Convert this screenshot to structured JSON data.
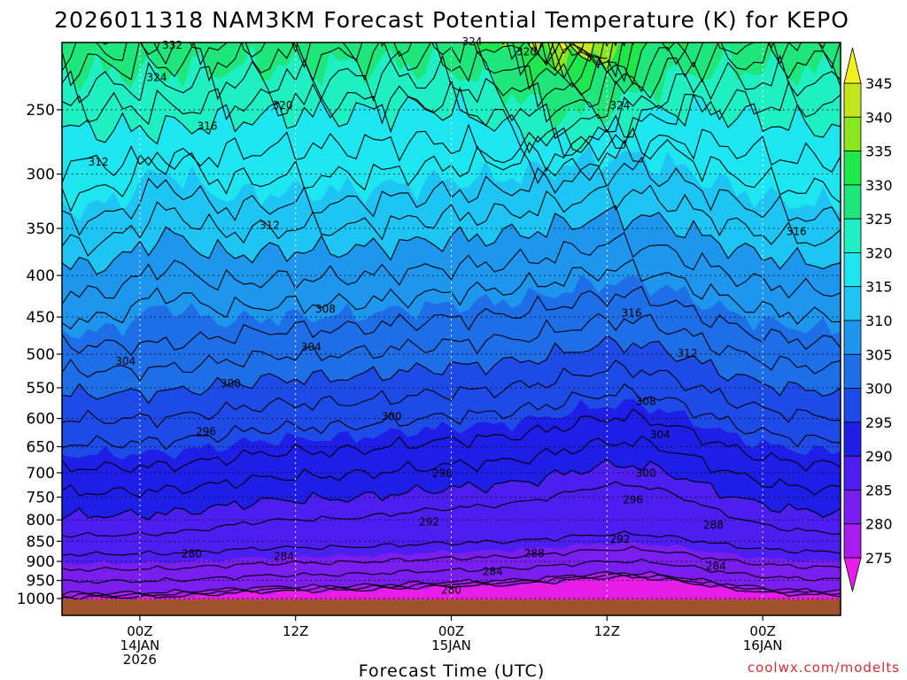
{
  "chart_data": {
    "type": "heatmap",
    "title": "2026011318 NAM3KM Forecast Potential Temperature (K) for KEPO",
    "xlabel": "Forecast Time (UTC)",
    "ylabel": "",
    "credit": "coolwx.com/modelts",
    "y_axis": {
      "scale": "pressure",
      "inverted": true,
      "ylim": [
        1000,
        200
      ],
      "ticks": [
        250,
        300,
        350,
        400,
        450,
        500,
        550,
        600,
        650,
        700,
        750,
        800,
        850,
        900,
        950,
        1000
      ]
    },
    "x_axis": {
      "xlim_hours": [
        -6,
        54
      ],
      "ticks": [
        {
          "hour": 0,
          "lines": [
            "00Z",
            "14JAN",
            "2026"
          ]
        },
        {
          "hour": 12,
          "lines": [
            "12Z"
          ]
        },
        {
          "hour": 24,
          "lines": [
            "00Z",
            "15JAN"
          ]
        },
        {
          "hour": 36,
          "lines": [
            "12Z"
          ]
        },
        {
          "hour": 48,
          "lines": [
            "00Z",
            "16JAN"
          ]
        }
      ]
    },
    "grid": true,
    "colorbar": {
      "units": "K",
      "levels": [
        275,
        280,
        285,
        290,
        295,
        300,
        305,
        310,
        315,
        320,
        325,
        330,
        335,
        340,
        345
      ],
      "colors": [
        "#e81ee8",
        "#a81ef0",
        "#7a1ef0",
        "#4d1ef0",
        "#1e1ee6",
        "#1e4be8",
        "#1e6ee8",
        "#1e96ee",
        "#1ec4f4",
        "#1ee6f0",
        "#1ef0c4",
        "#1ee67a",
        "#1ee64b",
        "#8ce61e",
        "#c4e61e",
        "#f0f01e"
      ],
      "placement": "right"
    },
    "ground_color": "#a0522d",
    "contour_labels": [
      {
        "value": "332",
        "hour": 2.5,
        "p": 208
      },
      {
        "value": "324",
        "hour": 25.6,
        "p": 206
      },
      {
        "value": "320",
        "hour": 29.8,
        "p": 212
      },
      {
        "value": "324",
        "hour": 1.3,
        "p": 228
      },
      {
        "value": "320",
        "hour": 11.0,
        "p": 247
      },
      {
        "value": "324",
        "hour": 37.0,
        "p": 247
      },
      {
        "value": "316",
        "hour": 5.2,
        "p": 262
      },
      {
        "value": "312",
        "hour": -3.2,
        "p": 290
      },
      {
        "value": "312",
        "hour": 10.0,
        "p": 347
      },
      {
        "value": "316",
        "hour": 50.6,
        "p": 353
      },
      {
        "value": "308",
        "hour": 14.3,
        "p": 440
      },
      {
        "value": "316",
        "hour": 37.9,
        "p": 445
      },
      {
        "value": "304",
        "hour": 13.2,
        "p": 490
      },
      {
        "value": "312",
        "hour": 42.2,
        "p": 499
      },
      {
        "value": "304",
        "hour": -1.1,
        "p": 510
      },
      {
        "value": "300",
        "hour": 7.0,
        "p": 543
      },
      {
        "value": "308",
        "hour": 39.0,
        "p": 572
      },
      {
        "value": "300",
        "hour": 19.4,
        "p": 597
      },
      {
        "value": "296",
        "hour": 5.1,
        "p": 623
      },
      {
        "value": "304",
        "hour": 40.1,
        "p": 628
      },
      {
        "value": "296",
        "hour": 23.3,
        "p": 701
      },
      {
        "value": "300",
        "hour": 39.0,
        "p": 701
      },
      {
        "value": "296",
        "hour": 38.0,
        "p": 756
      },
      {
        "value": "292",
        "hour": 22.3,
        "p": 805
      },
      {
        "value": "288",
        "hour": 44.2,
        "p": 812
      },
      {
        "value": "292",
        "hour": 37.0,
        "p": 845
      },
      {
        "value": "280",
        "hour": 4.0,
        "p": 881
      },
      {
        "value": "284",
        "hour": 11.1,
        "p": 888
      },
      {
        "value": "288",
        "hour": 30.4,
        "p": 880
      },
      {
        "value": "284",
        "hour": 44.4,
        "p": 912
      },
      {
        "value": "284",
        "hour": 27.2,
        "p": 926
      },
      {
        "value": "280",
        "hour": 24.0,
        "p": 976
      }
    ]
  }
}
